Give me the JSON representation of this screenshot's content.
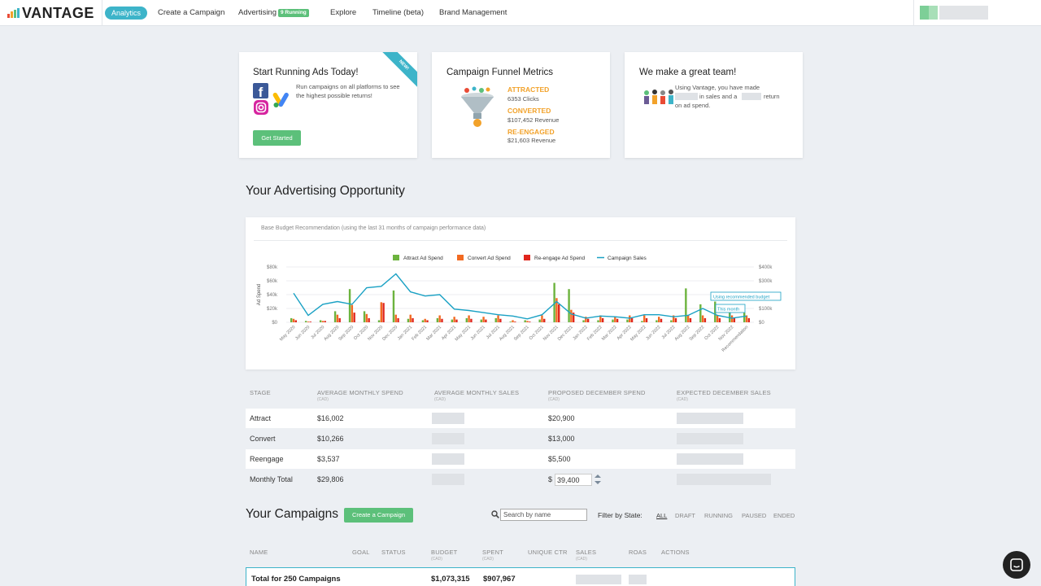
{
  "nav": {
    "logo": "VANTAGE",
    "items": [
      "Analytics",
      "Create a Campaign",
      "Advertising",
      "Explore",
      "Timeline (beta)",
      "Brand Management"
    ],
    "running_badge": "9 Running"
  },
  "cards": {
    "ads": {
      "title": "Start Running Ads Today!",
      "text": "Run campaigns on all platforms to see the highest possible returns!",
      "ribbon": "NEW!",
      "button": "Get Started",
      "icons": [
        "facebook-icon",
        "instagram-icon",
        "google-ads-icon"
      ]
    },
    "funnel": {
      "title": "Campaign Funnel Metrics",
      "attracted_label": "ATTRACTED",
      "attracted_value": "6353 Clicks",
      "converted_label": "CONVERTED",
      "converted_value": "$107,452 Revenue",
      "reengaged_label": "RE-ENGAGED",
      "reengaged_value": "$21,603 Revenue"
    },
    "team": {
      "title": "We make a great team!",
      "text_1": "Using Vantage, you have made",
      "text_2": "in sales and a",
      "text_3": "return",
      "text_4": "on ad spend."
    }
  },
  "opportunity": {
    "title": "Your Advertising Opportunity",
    "chart_subtitle": "Base Budget Recommendation (using the last 31 months of campaign performance data)"
  },
  "chart_data": {
    "type": "bar",
    "ylabel": "Ad Spend",
    "ylim": [
      0,
      80000
    ],
    "y2lim": [
      0,
      400000
    ],
    "y_ticks": [
      "$80k",
      "$60k",
      "$40k",
      "$20k",
      "$0"
    ],
    "y2_ticks": [
      "$400k",
      "$300k",
      "$200k",
      "$100k",
      "$0"
    ],
    "legend_position": "top-center",
    "categories": [
      "May 2020",
      "Jun 2020",
      "Jul 2020",
      "Aug 2020",
      "Sep 2020",
      "Oct 2020",
      "Nov 2020",
      "Dec 2020",
      "Jan 2021",
      "Feb 2021",
      "Mar 2021",
      "Apr 2021",
      "May 2021",
      "Jun 2021",
      "Jul 2021",
      "Aug 2021",
      "Sep 2021",
      "Oct 2021",
      "Nov 2021",
      "Dec 2021",
      "Jan 2022",
      "Feb 2022",
      "Mar 2022",
      "Apr 2022",
      "May 2022",
      "Jun 2022",
      "Jul 2022",
      "Aug 2022",
      "Sep 2022",
      "Oct 2022",
      "Nov 2022",
      "Recommendation"
    ],
    "series": [
      {
        "name": "Attract Ad Spend",
        "color": "#6cb33e",
        "values": [
          6000,
          2000,
          3000,
          16000,
          48000,
          16000,
          3000,
          46000,
          5000,
          3000,
          6000,
          4000,
          6000,
          4000,
          6000,
          1000,
          3000,
          4000,
          57000,
          48000,
          3000,
          3000,
          4000,
          4000,
          2000,
          3000,
          3000,
          49000,
          26000,
          30000,
          14000,
          14000
        ]
      },
      {
        "name": "Convert Ad Spend",
        "color": "#f26a21",
        "values": [
          5000,
          1000,
          2000,
          11000,
          25000,
          12000,
          29000,
          11000,
          11000,
          5000,
          10000,
          8000,
          10000,
          8000,
          10000,
          3000,
          2000,
          10000,
          35000,
          18000,
          8000,
          10000,
          8000,
          10000,
          10000,
          8000,
          10000,
          10000,
          10000,
          10000,
          10000,
          10000
        ]
      },
      {
        "name": "Re-engage Ad Spend",
        "color": "#e0261d",
        "values": [
          3000,
          1000,
          2000,
          6000,
          14000,
          6000,
          28000,
          6000,
          6000,
          3000,
          5000,
          4000,
          5000,
          4000,
          5000,
          1000,
          1000,
          5000,
          26000,
          14000,
          5000,
          6000,
          5000,
          6000,
          6000,
          5000,
          6000,
          6000,
          6000,
          6000,
          6000,
          6000
        ]
      },
      {
        "name": "Campaign Sales",
        "color": "#1aa1c4",
        "axis": "right",
        "values": [
          210000,
          50000,
          130000,
          150000,
          130000,
          250000,
          260000,
          350000,
          220000,
          190000,
          200000,
          95000,
          85000,
          70000,
          55000,
          45000,
          25000,
          55000,
          150000,
          60000,
          30000,
          45000,
          40000,
          30000,
          55000,
          55000,
          40000,
          50000,
          100000,
          50000,
          30000,
          45000
        ]
      }
    ],
    "annotations": [
      "Using recommended budget",
      "This month"
    ]
  },
  "budget_table": {
    "headers": [
      {
        "label": "STAGE",
        "unit": ""
      },
      {
        "label": "AVERAGE MONTHLY SPEND",
        "unit": "(CAD)"
      },
      {
        "label": "AVERAGE MONTHLY SALES",
        "unit": "(CAD)"
      },
      {
        "label": "PROPOSED DECEMBER SPEND",
        "unit": "(CAD)"
      },
      {
        "label": "EXPECTED DECEMBER SALES",
        "unit": "(CAD)"
      }
    ],
    "rows": [
      {
        "stage": "Attract",
        "avg_spend": "$16,002",
        "proposed": "$20,900"
      },
      {
        "stage": "Convert",
        "avg_spend": "$10,266",
        "proposed": "$13,000"
      },
      {
        "stage": "Reengage",
        "avg_spend": "$3,537",
        "proposed": "$5,500"
      }
    ],
    "total": {
      "stage": "Monthly Total",
      "avg_spend": "$29,806",
      "currency": "$",
      "proposed_value": "39,400"
    }
  },
  "campaigns": {
    "title": "Your Campaigns",
    "create_button": "Create a Campaign",
    "search_placeholder": "Search by name",
    "filter_label": "Filter by State:",
    "filters": [
      "ALL",
      "DRAFT",
      "RUNNING",
      "PAUSED",
      "ENDED"
    ],
    "headers": [
      {
        "label": "NAME",
        "unit": ""
      },
      {
        "label": "GOAL",
        "unit": ""
      },
      {
        "label": "STATUS",
        "unit": ""
      },
      {
        "label": "BUDGET",
        "unit": "(CAD)"
      },
      {
        "label": "SPENT",
        "unit": "(CAD)"
      },
      {
        "label": "UNIQUE CTR",
        "unit": ""
      },
      {
        "label": "SALES",
        "unit": "(CAD)"
      },
      {
        "label": "ROAS",
        "unit": ""
      },
      {
        "label": "ACTIONS",
        "unit": ""
      }
    ],
    "total": {
      "name": "Total for 250 Campaigns",
      "budget": "$1,073,315",
      "spent": "$907,967"
    }
  }
}
